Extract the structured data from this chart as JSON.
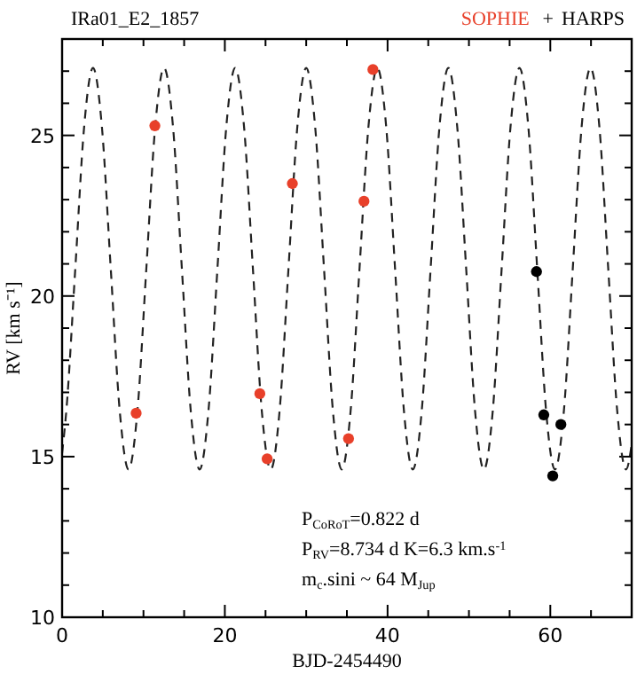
{
  "chart_data": {
    "type": "scatter",
    "title": "IRa01_E2_1857",
    "xlabel": "BJD-2454490",
    "ylabel": "RV [km s⁻¹]",
    "xlim": [
      0,
      70
    ],
    "ylim": [
      10,
      28
    ],
    "xticks": [
      0,
      {
        "value": 5,
        "label": null
      },
      {
        "value": 10,
        "label": null
      },
      {
        "value": 15,
        "label": null
      },
      20,
      {
        "value": 25,
        "label": null
      },
      {
        "value": 30,
        "label": null
      },
      {
        "value": 35,
        "label": null
      },
      40,
      {
        "value": 45,
        "label": null
      },
      {
        "value": 50,
        "label": null
      },
      {
        "value": 55,
        "label": null
      },
      60,
      {
        "value": 65,
        "label": null
      }
    ],
    "yticks": [
      10,
      {
        "value": 11,
        "label": null
      },
      {
        "value": 12,
        "label": null
      },
      {
        "value": 13,
        "label": null
      },
      {
        "value": 14,
        "label": null
      },
      15,
      {
        "value": 16,
        "label": null
      },
      {
        "value": 17,
        "label": null
      },
      {
        "value": 18,
        "label": null
      },
      {
        "value": 19,
        "label": null
      },
      20,
      {
        "value": 21,
        "label": null
      },
      {
        "value": 22,
        "label": null
      },
      {
        "value": 23,
        "label": null
      },
      {
        "value": 24,
        "label": null
      },
      25,
      {
        "value": 26,
        "label": null
      },
      {
        "value": 27,
        "label": null
      }
    ],
    "grid": false,
    "legend": "top right",
    "marker": "circle",
    "annotations": [
      "+",
      "P$_{CoRoT}$=0.822 d",
      "P$_{RV}$=8.734 d K=6.3 km.s$^{-1}$",
      "m$_{c}$.sini ~ 64 M$_{Jup}$"
    ],
    "series": [
      {
        "type": "line",
        "color": "#222222",
        "line_style": "dashed",
        "marker": "none",
        "x": [
          0,
          0.52,
          1.62,
          2.71,
          3.8,
          4.89,
          5.98,
          7.08,
          8.17,
          9.26,
          10.35,
          11.44,
          12.53,
          13.63,
          14.72,
          15.81,
          16.9,
          17.99,
          19.09,
          20.18,
          21.27,
          22.36,
          23.45,
          24.54,
          25.64,
          26.73,
          27.82,
          28.91,
          30.0,
          31.1,
          32.19,
          33.28,
          34.37,
          35.46,
          36.55,
          37.65,
          38.74,
          39.83,
          40.92,
          42.01,
          43.1,
          44.2,
          45.29,
          46.38,
          47.47,
          48.56,
          49.66,
          50.75,
          51.84,
          52.93,
          54.02,
          55.11,
          56.21,
          57.3,
          58.39,
          59.48,
          60.57,
          61.67,
          62.76,
          63.85,
          64.94,
          66.03,
          67.12,
          68.22,
          69.31,
          70
        ],
        "values": [
          15.11,
          16.43,
          20.85,
          25.27,
          27.1,
          25.27,
          20.85,
          16.43,
          14.6,
          16.43,
          20.85,
          25.27,
          27.1,
          25.27,
          20.85,
          16.43,
          14.6,
          16.43,
          20.85,
          25.27,
          27.1,
          25.27,
          20.85,
          16.43,
          14.6,
          16.43,
          20.85,
          25.27,
          27.1,
          25.27,
          20.85,
          16.43,
          14.6,
          16.43,
          20.85,
          25.27,
          27.1,
          25.27,
          20.85,
          16.43,
          14.6,
          16.43,
          20.85,
          25.27,
          27.1,
          25.27,
          20.85,
          16.43,
          14.6,
          16.43,
          20.85,
          25.27,
          27.1,
          25.27,
          20.85,
          16.43,
          14.6,
          16.43,
          20.85,
          25.27,
          27.1,
          25.27,
          20.85,
          16.43,
          14.6,
          15.37
        ]
      },
      {
        "name": "SOPHIE",
        "color": "#e8402a",
        "x": [
          9.1,
          11.4,
          24.3,
          25.2,
          28.3,
          35.2,
          37.1,
          38.2
        ],
        "values": [
          16.35,
          25.3,
          16.96,
          14.93,
          23.5,
          15.56,
          22.95,
          27.05
        ]
      },
      {
        "name": "HARPS",
        "color": "#000000",
        "x": [
          58.3,
          59.2,
          60.3,
          61.3
        ],
        "values": [
          20.76,
          16.3,
          14.4,
          16.0
        ]
      }
    ]
  }
}
